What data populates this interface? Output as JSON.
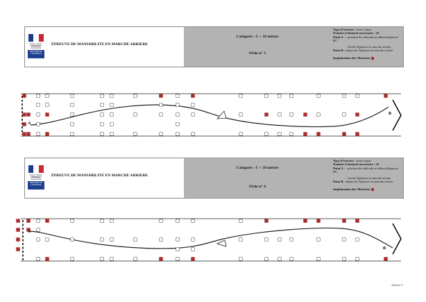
{
  "exercises": [
    {
      "logo": {
        "line1": "Liberté • Égalité • Fraternité",
        "line2": "RÉPUBLIQUE FRANÇAISE",
        "box": "MINISTÈRE DE L'INTÉRIEUR"
      },
      "title": "ÉPREUVE DE MANIABILITE EN MARCHE ARRIERE",
      "category": "Catégorie : C + 10 mètres",
      "sheet": "Fiche n° 3",
      "info": {
        "type_label": "Type d'exercice",
        "type_value": " : mise à quai",
        "count_label": "Nombre d'obstacle nécessaire : 22",
        "pointA_label": "Point A",
        "pointA_value": " : - position du véhicule en début d'épreuve",
        "hc": "HC",
        "end_line": "- fin de l'épreuve en marche arrière",
        "pointB_label": "Point B",
        "pointB_value": " : départ de l'épreuve en marche arrière",
        "legend": "Implantation des Obstacles"
      },
      "course": {
        "label_a": "A",
        "label_b": "B",
        "white_cols": [
          [
            55,
            [
              0,
              1,
              2,
              3,
              4
            ]
          ],
          [
            68,
            [
              0,
              1
            ]
          ],
          [
            104,
            [
              0,
              1,
              2,
              3,
              4
            ]
          ],
          [
            147,
            [
              0,
              1,
              2,
              3,
              4
            ]
          ],
          [
            161,
            [
              0,
              1,
              2,
              3,
              4
            ]
          ],
          [
            195,
            [
              0,
              2,
              4
            ]
          ],
          [
            232,
            [
              1,
              2,
              4
            ]
          ],
          [
            256,
            [
              0,
              1,
              2,
              3,
              4
            ]
          ],
          [
            278,
            [
              1,
              2,
              4
            ]
          ],
          [
            347,
            [
              0,
              2,
              4
            ]
          ],
          [
            384,
            [
              0,
              4
            ]
          ],
          [
            403,
            [
              0,
              2,
              4
            ]
          ],
          [
            420,
            [
              0,
              2,
              4
            ]
          ],
          [
            459,
            [
              0,
              2
            ]
          ],
          [
            496,
            [
              0,
              2
            ]
          ],
          [
            515,
            [
              0,
              4
            ]
          ]
        ],
        "red_cols": [
          [
            35,
            [
              0,
              2,
              3,
              4
            ]
          ],
          [
            41,
            [
              2,
              4
            ]
          ],
          [
            68,
            [
              2,
              4
            ]
          ],
          [
            232,
            [
              0
            ]
          ],
          [
            278,
            [
              0
            ]
          ],
          [
            384,
            [
              2
            ]
          ],
          [
            440,
            [
              2,
              4
            ]
          ],
          [
            459,
            [
              4
            ]
          ],
          [
            496,
            [
              4
            ]
          ],
          [
            515,
            [
              2,
              4
            ]
          ],
          [
            556,
            [
              0
            ]
          ]
        ]
      }
    },
    {
      "logo": {
        "line1": "Liberté • Égalité • Fraternité",
        "line2": "RÉPUBLIQUE FRANÇAISE",
        "box": "MINISTÈRE DE L'INTÉRIEUR"
      },
      "title": "ÉPREUVE DE MANIABILITE EN MARCHE ARRIERE",
      "category": "Catégorie : C + 10 mètres",
      "sheet": "Fiche n° 4",
      "info": {
        "type_label": "Type d'exercice",
        "type_value": " : mise à quai",
        "count_label": "Nombre d'obstacle nécessaire : 22",
        "pointA_label": "Point A",
        "pointA_value": " : - position du véhicule en début d'épreuve",
        "hc": "HC",
        "end_line": "- fin de l'épreuve en marche arrière",
        "pointB_label": "Point B",
        "pointB_value": " : départ de l'épreuve en marche arrière",
        "legend": "Implantation des Obstacles"
      },
      "course": {
        "label_a": "A",
        "label_b": "B",
        "white_cols": [
          [
            55,
            [
              0,
              1,
              2,
              4
            ]
          ],
          [
            68,
            [
              2
            ]
          ],
          [
            104,
            [
              0,
              2,
              4
            ]
          ],
          [
            147,
            [
              0,
              2,
              4
            ]
          ],
          [
            161,
            [
              0,
              2,
              4
            ]
          ],
          [
            195,
            [
              2,
              4
            ]
          ],
          [
            232,
            [
              0,
              2,
              4
            ]
          ],
          [
            256,
            [
              0,
              2,
              3,
              4
            ]
          ],
          [
            278,
            [
              0,
              2,
              3,
              4
            ]
          ],
          [
            347,
            [
              0,
              2,
              4
            ]
          ],
          [
            384,
            [
              2,
              4
            ]
          ],
          [
            403,
            [
              2,
              4
            ]
          ],
          [
            420,
            [
              2,
              4
            ]
          ],
          [
            459,
            [
              2,
              4
            ]
          ],
          [
            496,
            [
              2,
              4
            ]
          ],
          [
            515,
            [
              2,
              4
            ]
          ]
        ],
        "red_cols": [
          [
            26,
            [
              0,
              1,
              2,
              3
            ]
          ],
          [
            41,
            [
              0,
              1
            ]
          ],
          [
            68,
            [
              0,
              4
            ]
          ],
          [
            232,
            [
              4
            ]
          ],
          [
            278,
            [
              4
            ]
          ],
          [
            384,
            [
              0
            ]
          ],
          [
            440,
            [
              0
            ]
          ],
          [
            459,
            [
              0
            ]
          ],
          [
            496,
            [
              0
            ]
          ],
          [
            515,
            [
              0
            ]
          ],
          [
            556,
            [
              4
            ]
          ]
        ]
      }
    }
  ],
  "annex": "Annexe 3"
}
